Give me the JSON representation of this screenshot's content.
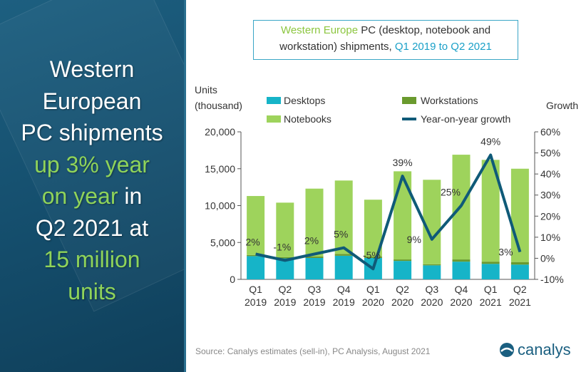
{
  "headline": {
    "line1": "Western",
    "line2": "European",
    "line3": "PC shipments",
    "line4": "up 3% year",
    "line5a": "on year",
    "line5b": " in",
    "line6": "Q2 2021 at",
    "line7": "15 million",
    "line8": "units"
  },
  "title": {
    "part1": "Western Europe",
    "part2": " PC (desktop, notebook and",
    "part3": "workstation) shipments, ",
    "part4": "Q1 2019 to Q2 2021"
  },
  "source": "Source:  Canalys estimates (sell-in), PC Analysis, August 2021",
  "logo_text": "canalys",
  "colors": {
    "desktops": "#16b4c8",
    "workstations": "#6a9a2e",
    "notebooks": "#9ed35c",
    "growth": "#0f5a78"
  },
  "chart_data": {
    "type": "bar",
    "stacked": true,
    "title": "Western Europe PC (desktop, notebook and workstation) shipments, Q1 2019 to Q2 2021",
    "ylabel_line1": "Units",
    "ylabel_line2": "(thousand)",
    "y2label": "Growth",
    "ylim": [
      0,
      20000
    ],
    "y2lim": [
      -10,
      60
    ],
    "yticks": [
      "0",
      "5,000",
      "10,000",
      "15,000",
      "20,000"
    ],
    "y2ticks": [
      "-10%",
      "0%",
      "10%",
      "20%",
      "30%",
      "40%",
      "50%",
      "60%"
    ],
    "categories": [
      [
        "Q1",
        "2019"
      ],
      [
        "Q2",
        "2019"
      ],
      [
        "Q3",
        "2019"
      ],
      [
        "Q4",
        "2019"
      ],
      [
        "Q1",
        "2020"
      ],
      [
        "Q2",
        "2020"
      ],
      [
        "Q3",
        "2020"
      ],
      [
        "Q4",
        "2020"
      ],
      [
        "Q1",
        "2021"
      ],
      [
        "Q2",
        "2021"
      ]
    ],
    "legend": [
      "Desktops",
      "Workstations",
      "Notebooks",
      "Year-on-year growth"
    ],
    "series": [
      {
        "name": "Desktops",
        "values": [
          3150,
          2850,
          2900,
          3200,
          2900,
          2500,
          1900,
          2400,
          2100,
          2000
        ]
      },
      {
        "name": "Workstations",
        "values": [
          150,
          150,
          200,
          250,
          200,
          200,
          150,
          300,
          300,
          350
        ]
      },
      {
        "name": "Notebooks",
        "values": [
          8000,
          7400,
          9200,
          9950,
          7700,
          11950,
          11450,
          14200,
          13800,
          12650
        ]
      },
      {
        "name": "Year-on-year growth",
        "axis": "right",
        "values": [
          2,
          -1,
          2,
          5,
          -5,
          39,
          9,
          25,
          49,
          3
        ]
      }
    ],
    "growth_labels": [
      "2%",
      "-1%",
      "2%",
      "5%",
      "-5%",
      "39%",
      "9%",
      "25%",
      "49%",
      "3%"
    ]
  }
}
